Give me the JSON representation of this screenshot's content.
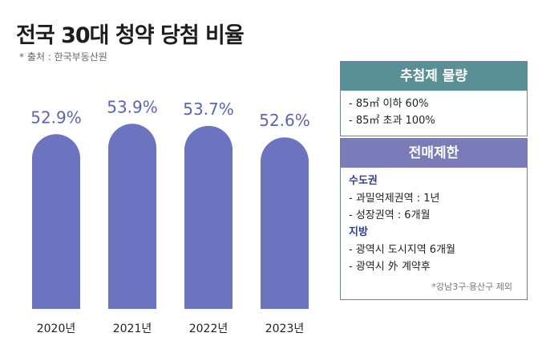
{
  "title": "전국 30대 청약 당첨 비율",
  "source": "* 출처 : 한국부동산원",
  "colors": {
    "bar": "#6c73bf",
    "value_text": "#5a64b4",
    "panel_head_top": "#5a8f96",
    "panel_head_bottom": "#7a7bb8"
  },
  "chart_data": {
    "type": "bar",
    "categories": [
      "2020년",
      "2021년",
      "2022년",
      "2023년"
    ],
    "values": [
      52.9,
      53.9,
      53.7,
      52.6
    ],
    "value_labels": [
      "52.9%",
      "53.9%",
      "53.7%",
      "52.6%"
    ],
    "unit": "%",
    "xlabel": "",
    "ylabel": "",
    "grid": false,
    "legend": "none"
  },
  "panel_top": {
    "title": "추첨제 물량",
    "items": [
      "- 85㎡ 이하 60%",
      "- 85㎡ 초과 100%"
    ]
  },
  "panel_bottom": {
    "title": "전매제한",
    "sections": [
      {
        "heading": "수도권",
        "items": [
          "- 과밀억제권역 : 1년",
          "- 성장권역 : 6개월"
        ]
      },
      {
        "heading": "지방",
        "items": [
          "- 광역시 도시지역 6개월",
          "- 광역시 外 계약후"
        ]
      }
    ],
    "note": "*강남3구·용산구 제외"
  }
}
